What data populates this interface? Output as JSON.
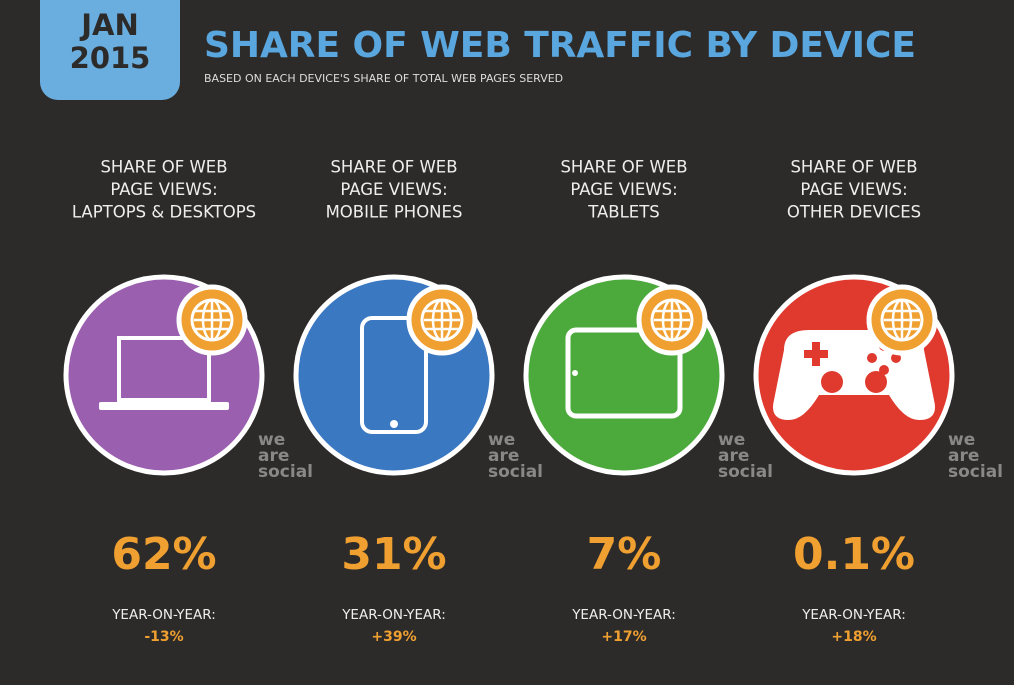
{
  "header": {
    "date_line1": "JAN",
    "date_line2": "2015",
    "title": "SHARE OF WEB TRAFFIC BY DEVICE",
    "subtitle": "BASED ON EACH DEVICE'S SHARE OF TOTAL WEB PAGES SERVED"
  },
  "devices": [
    {
      "label": [
        "SHARE OF WEB",
        "PAGE VIEWS:",
        "LAPTOPS & DESKTOPS"
      ],
      "color": "#9b5fb0",
      "watermark": [
        "we",
        "are",
        "social"
      ],
      "share": "62%",
      "yoy_label": "YEAR-ON-YEAR:",
      "yoy": "-13%"
    },
    {
      "label": [
        "SHARE OF WEB",
        "PAGE VIEWS:",
        "MOBILE PHONES"
      ],
      "color": "#3a78c2",
      "watermark": [
        "we",
        "are",
        "social"
      ],
      "share": "31%",
      "yoy_label": "YEAR-ON-YEAR:",
      "yoy": "+39%"
    },
    {
      "label": [
        "SHARE OF WEB",
        "PAGE VIEWS:",
        "TABLETS"
      ],
      "color": "#4caa3c",
      "watermark": [
        "we",
        "are",
        "social"
      ],
      "share": "7%",
      "yoy_label": "YEAR-ON-YEAR:",
      "yoy": "+17%"
    },
    {
      "label": [
        "SHARE OF WEB",
        "PAGE VIEWS:",
        "OTHER DEVICES"
      ],
      "color": "#e03a2f",
      "watermark": [
        "we",
        "are",
        "social"
      ],
      "share": "0.1%",
      "yoy_label": "YEAR-ON-YEAR:",
      "yoy": "+18%"
    }
  ]
}
